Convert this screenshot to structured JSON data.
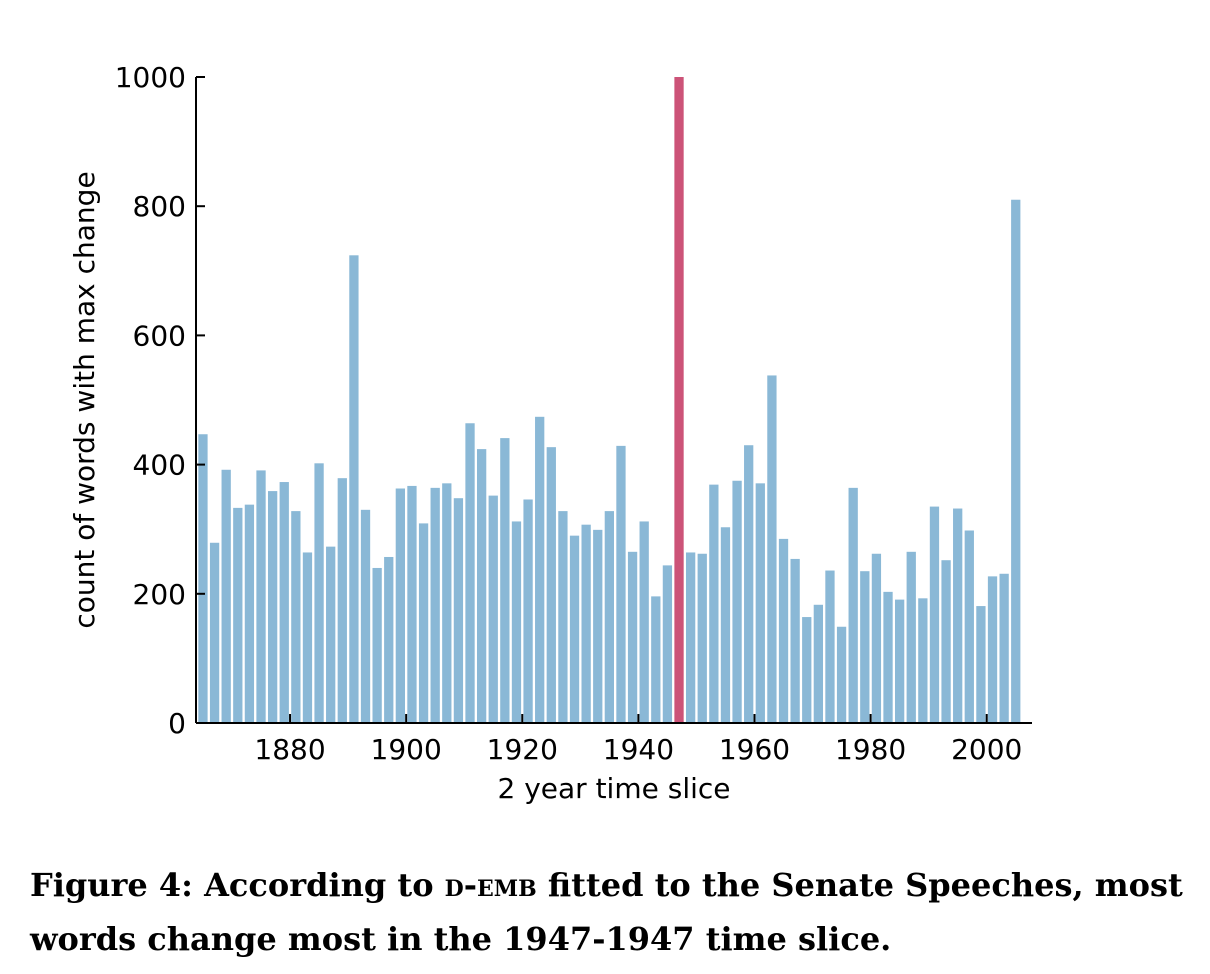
{
  "chart_data": {
    "type": "bar",
    "xlabel": "2 year time slice",
    "ylabel": "count of words with max change",
    "ylim": [
      0,
      1000
    ],
    "xlim": [
      1863.8,
      2007.8
    ],
    "yticks": [
      "0",
      "200",
      "400",
      "600",
      "800",
      "1000"
    ],
    "xticks": [
      "1880",
      "1900",
      "1920",
      "1940",
      "1960",
      "1980",
      "2000"
    ],
    "bar_width_years": 1.6,
    "bar_color": "#8ab8d6",
    "highlight_color": "#cc5378",
    "highlight_x": 1947,
    "x": [
      1865,
      1867,
      1869,
      1871,
      1873,
      1875,
      1877,
      1879,
      1881,
      1883,
      1885,
      1887,
      1889,
      1891,
      1893,
      1895,
      1897,
      1899,
      1901,
      1903,
      1905,
      1907,
      1909,
      1911,
      1913,
      1915,
      1917,
      1919,
      1921,
      1923,
      1925,
      1927,
      1929,
      1931,
      1933,
      1935,
      1937,
      1939,
      1941,
      1943,
      1945,
      1947,
      1949,
      1951,
      1953,
      1955,
      1957,
      1959,
      1961,
      1963,
      1965,
      1967,
      1969,
      1971,
      1973,
      1975,
      1977,
      1979,
      1981,
      1983,
      1985,
      1987,
      1989,
      1991,
      1993,
      1995,
      1997,
      1999,
      2001,
      2003,
      2005
    ],
    "values": [
      447,
      279,
      392,
      333,
      338,
      391,
      359,
      373,
      328,
      264,
      402,
      273,
      379,
      724,
      330,
      240,
      257,
      363,
      367,
      309,
      364,
      371,
      348,
      464,
      424,
      352,
      441,
      312,
      346,
      474,
      427,
      328,
      290,
      307,
      299,
      328,
      429,
      265,
      312,
      196,
      244,
      1000,
      264,
      262,
      369,
      303,
      375,
      430,
      371,
      538,
      285,
      254,
      164,
      183,
      236,
      149,
      364,
      235,
      262,
      203,
      191,
      265,
      193,
      335,
      252,
      332,
      298,
      181,
      227,
      231,
      810
    ]
  },
  "caption": {
    "prefix": "Figure 4: According to ",
    "model": "d-emb",
    "suffix": " fitted to the Senate Speeches, most words change most in the 1947-1947 time slice."
  }
}
